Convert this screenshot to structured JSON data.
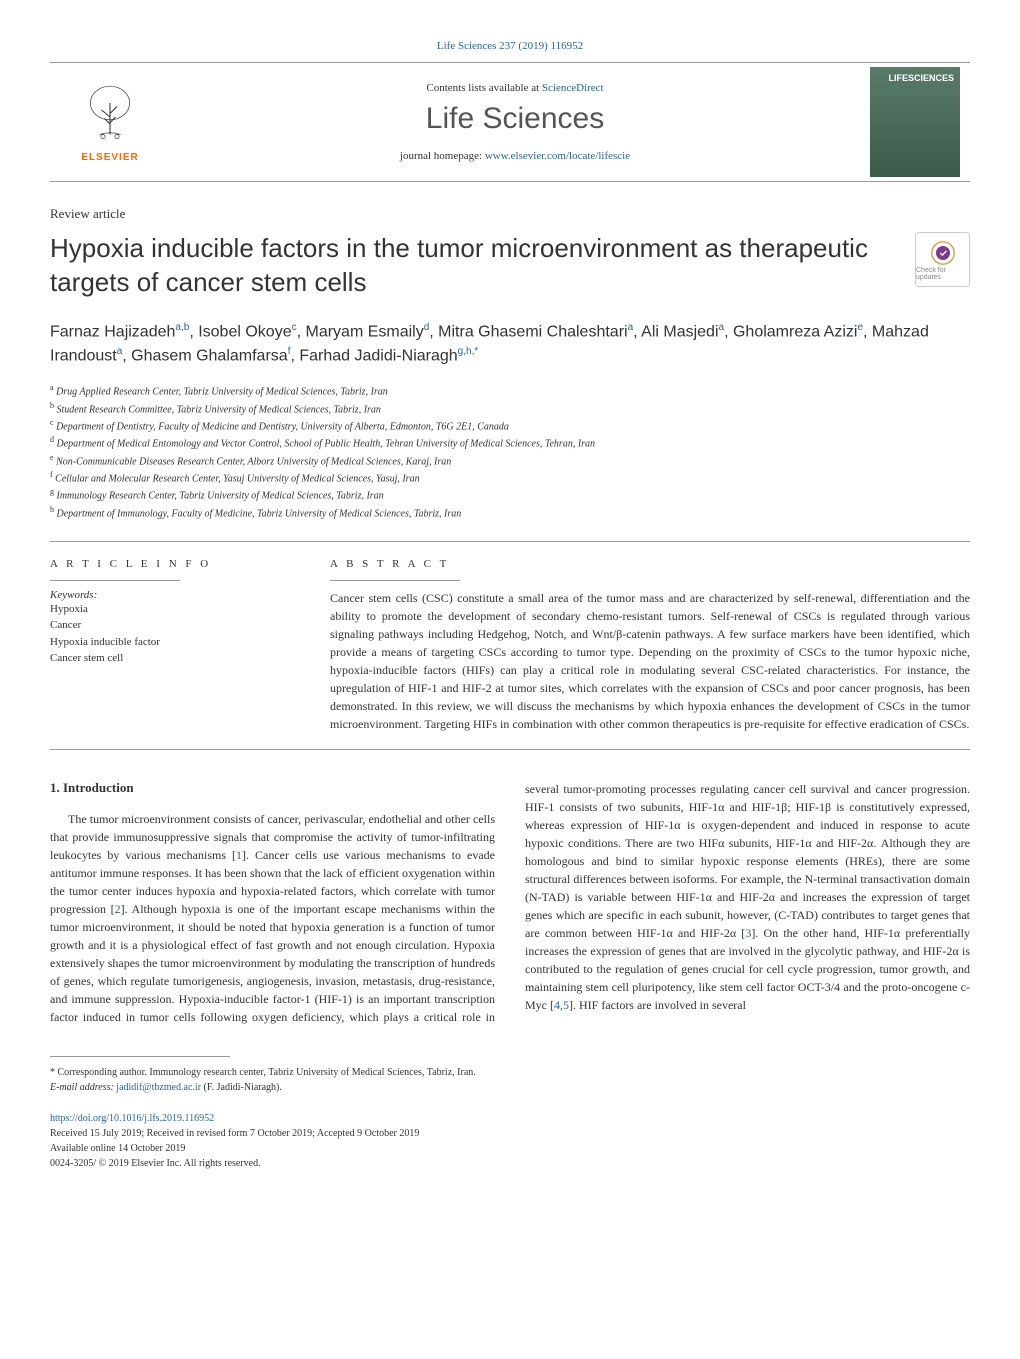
{
  "journal_ref": "Life Sciences 237 (2019) 116952",
  "header": {
    "contents_text": "Contents lists available at ",
    "contents_link": "ScienceDirect",
    "journal_name": "Life Sciences",
    "homepage_text": "journal homepage: ",
    "homepage_link": "www.elsevier.com/locate/lifescie",
    "publisher": "ELSEVIER",
    "cover_brand": "LIFESCIENCES"
  },
  "article_type": "Review article",
  "title": "Hypoxia inducible factors in the tumor microenvironment as therapeutic targets of cancer stem cells",
  "updates_label": "Check for updates",
  "authors_html": "Farnaz Hajizadeh<sup>a,b</sup>, Isobel Okoye<sup>c</sup>, Maryam Esmaily<sup>d</sup>, Mitra Ghasemi Chaleshtari<sup>a</sup>, Ali Masjedi<sup>a</sup>, Gholamreza Azizi<sup>e</sup>, Mahzad Irandoust<sup>a</sup>, Ghasem Ghalamfarsa<sup>f</sup>, Farhad Jadidi-Niaragh<sup>g,h,*</sup>",
  "affiliations": [
    {
      "key": "a",
      "text": "Drug Applied Research Center, Tabriz University of Medical Sciences, Tabriz, Iran"
    },
    {
      "key": "b",
      "text": "Student Research Committee, Tabriz University of Medical Sciences, Tabriz, Iran"
    },
    {
      "key": "c",
      "text": "Department of Dentistry, Faculty of Medicine and Dentistry, University of Alberta, Edmonton, T6G 2E1, Canada"
    },
    {
      "key": "d",
      "text": "Department of Medical Entomology and Vector Control, School of Public Health, Tehran University of Medical Sciences, Tehran, Iran"
    },
    {
      "key": "e",
      "text": "Non-Communicable Diseases Research Center, Alborz University of Medical Sciences, Karaj, Iran"
    },
    {
      "key": "f",
      "text": "Cellular and Molecular Research Center, Yasuj University of Medical Sciences, Yasuj, Iran"
    },
    {
      "key": "g",
      "text": "Immunology Research Center, Tabriz University of Medical Sciences, Tabriz, Iran"
    },
    {
      "key": "h",
      "text": "Department of Immunology, Faculty of Medicine, Tabriz University of Medical Sciences, Tabriz, Iran"
    }
  ],
  "info": {
    "heading": "A R T I C L E  I N F O",
    "keywords_label": "Keywords:",
    "keywords": [
      "Hypoxia",
      "Cancer",
      "Hypoxia inducible factor",
      "Cancer stem cell"
    ]
  },
  "abstract": {
    "heading": "A B S T R A C T",
    "text": "Cancer stem cells (CSC) constitute a small area of the tumor mass and are characterized by self-renewal, differentiation and the ability to promote the development of secondary chemo-resistant tumors. Self-renewal of CSCs is regulated through various signaling pathways including Hedgehog, Notch, and Wnt/β-catenin pathways. A few surface markers have been identified, which provide a means of targeting CSCs according to tumor type. Depending on the proximity of CSCs to the tumor hypoxic niche, hypoxia-inducible factors (HIFs) can play a critical role in modulating several CSC-related characteristics. For instance, the upregulation of HIF-1 and HIF-2 at tumor sites, which correlates with the expansion of CSCs and poor cancer prognosis, has been demonstrated. In this review, we will discuss the mechanisms by which hypoxia enhances the development of CSCs in the tumor microenvironment. Targeting HIFs in combination with other common therapeutics is pre-requisite for effective eradication of CSCs."
  },
  "section1": {
    "heading": "1. Introduction",
    "body": "The tumor microenvironment consists of cancer, perivascular, endothelial and other cells that provide immunosuppressive signals that compromise the activity of tumor-infiltrating leukocytes by various mechanisms [1]. Cancer cells use various mechanisms to evade antitumor immune responses. It has been shown that the lack of efficient oxygenation within the tumor center induces hypoxia and hypoxia-related factors, which correlate with tumor progression [2]. Although hypoxia is one of the important escape mechanisms within the tumor microenvironment, it should be noted that hypoxia generation is a function of tumor growth and it is a physiological effect of fast growth and not enough circulation. Hypoxia extensively shapes the tumor microenvironment by modulating the transcription of hundreds of genes, which regulate tumorigenesis, angiogenesis, invasion, metastasis, drug-resistance, and immune suppression. Hypoxia-inducible factor-1 (HIF-1) is an important transcription factor induced in tumor cells following oxygen deficiency, which plays a critical role in several tumor-promoting processes regulating cancer cell survival and cancer progression. HIF-1 consists of two subunits, HIF-1α and HIF-1β; HIF-1β is constitutively expressed, whereas expression of HIF-1α is oxygen-dependent and induced in response to acute hypoxic conditions. There are two HIFα subunits, HIF-1α and HIF-2α. Although they are homologous and bind to similar hypoxic response elements (HREs), there are some structural differences between isoforms. For example, the N-terminal transactivation domain (N-TAD) is variable between HIF-1α and HIF-2α and increases the expression of target genes which are specific in each subunit, however, (C-TAD) contributes to target genes that are common between HIF-1α and HIF-2α [3]. On the other hand, HIF-1α preferentially increases the expression of genes that are involved in the glycolytic pathway, and HIF-2α is contributed to the regulation of genes crucial for cell cycle progression, tumor growth, and maintaining stem cell pluripotency, like stem cell factor OCT-3/4 and the proto-oncogene c-Myc [4,5]. HIF factors are involved in several"
  },
  "corresponding": {
    "label": "* Corresponding author. Immunology research center, Tabriz University of Medical Sciences, Tabriz, Iran.",
    "email_label": "E-mail address: ",
    "email": "jadidif@tbzmed.ac.ir",
    "email_suffix": " (F. Jadidi-Niaragh)."
  },
  "footer": {
    "doi": "https://doi.org/10.1016/j.lfs.2019.116952",
    "received": "Received 15 July 2019; Received in revised form 7 October 2019; Accepted 9 October 2019",
    "available": "Available online 14 October 2019",
    "copyright": "0024-3205/ © 2019 Elsevier Inc. All rights reserved."
  },
  "colors": {
    "link": "#2a6496",
    "elsevier_orange": "#ff6600",
    "text": "#333333",
    "rule": "#999999"
  }
}
